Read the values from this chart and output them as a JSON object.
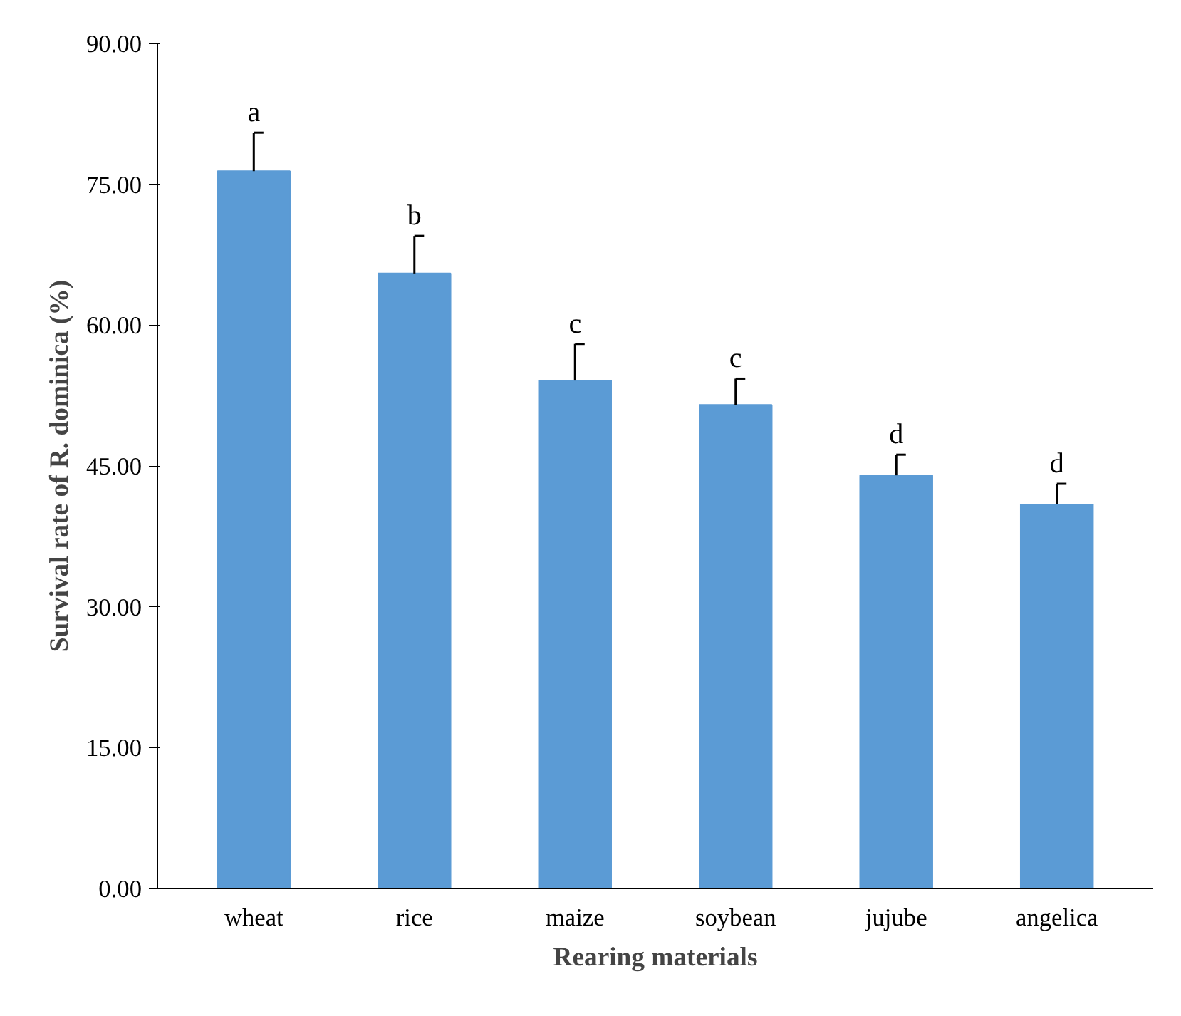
{
  "chart_data": {
    "type": "bar",
    "xlabel": "Rearing materials",
    "ylabel": "Survival rate of R. dominica (%)",
    "categories": [
      "wheat",
      "rice",
      "maize",
      "soybean",
      "jujube",
      "angelica"
    ],
    "values": [
      76.4,
      65.5,
      54.1,
      51.5,
      44.0,
      40.9
    ],
    "color": "#5b9bd5",
    "errors": [
      [
        76.4,
        80.5
      ],
      [
        65.5,
        69.5
      ],
      [
        54.1,
        58.0
      ],
      [
        51.5,
        54.3
      ],
      [
        44.0,
        46.2
      ],
      [
        40.9,
        43.1
      ]
    ],
    "ylim": [
      0,
      90
    ],
    "yticks": [
      {
        "value": 0,
        "label": "0.00"
      },
      {
        "value": 15,
        "label": "15.00"
      },
      {
        "value": 30,
        "label": "30.00"
      },
      {
        "value": 45,
        "label": "45.00"
      },
      {
        "value": 60,
        "label": "60.00"
      },
      {
        "value": 75,
        "label": "75.00"
      },
      {
        "value": 90,
        "label": "90.00"
      }
    ],
    "annotations": [
      {
        "text": "a",
        "x": "wheat",
        "y": 80.5
      },
      {
        "text": "b",
        "x": "rice",
        "y": 69.5
      },
      {
        "text": "c",
        "x": "maize",
        "y": 58.0
      },
      {
        "text": "c",
        "x": "soybean",
        "y": 54.3
      },
      {
        "text": "d",
        "x": "jujube",
        "y": 46.2
      },
      {
        "text": "d",
        "x": "angelica",
        "y": 43.1
      }
    ],
    "grid": false
  }
}
